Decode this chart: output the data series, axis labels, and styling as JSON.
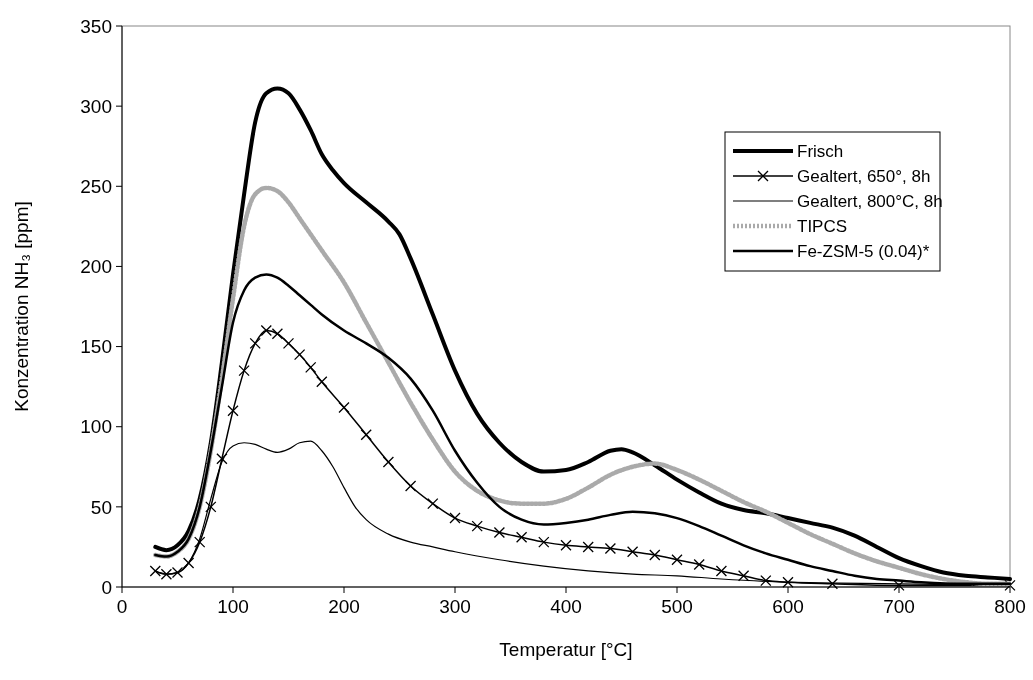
{
  "chart_data": {
    "type": "line",
    "xlabel": "Temperatur [°C]",
    "ylabel": "Konzentration NH₃ [ppm]",
    "xlim": [
      0,
      800
    ],
    "xticks": [
      0,
      100,
      200,
      300,
      400,
      500,
      600,
      700,
      800
    ],
    "ylim": [
      0,
      350
    ],
    "yticks": [
      0,
      50,
      100,
      150,
      200,
      250,
      300,
      350
    ],
    "grid": false,
    "legend": "top right",
    "series": [
      {
        "name": "Frisch",
        "color": "#000000",
        "marker": "none",
        "line_style": "solid",
        "x": [
          30,
          40,
          50,
          60,
          70,
          80,
          90,
          100,
          110,
          120,
          130,
          140,
          150,
          160,
          170,
          180,
          190,
          200,
          220,
          240,
          250,
          260,
          280,
          300,
          320,
          340,
          360,
          380,
          400,
          420,
          440,
          450,
          460,
          480,
          500,
          520,
          540,
          560,
          580,
          600,
          620,
          640,
          660,
          680,
          700,
          720,
          740,
          760,
          780,
          800
        ],
        "values": [
          25,
          23,
          26,
          35,
          55,
          90,
          140,
          195,
          245,
          290,
          308,
          311,
          308,
          298,
          285,
          270,
          260,
          252,
          240,
          228,
          220,
          205,
          170,
          135,
          108,
          90,
          78,
          72,
          73,
          78,
          85,
          86,
          84,
          76,
          67,
          59,
          52,
          48,
          46,
          43,
          40,
          37,
          32,
          25,
          18,
          13,
          9,
          7,
          6,
          5
        ]
      },
      {
        "name": "Gealtert, 650°, 8h",
        "color": "#000000",
        "marker": "cross",
        "line_style": "solid",
        "x": [
          30,
          40,
          50,
          60,
          70,
          80,
          90,
          100,
          110,
          120,
          130,
          140,
          150,
          160,
          170,
          180,
          200,
          220,
          240,
          260,
          280,
          300,
          320,
          340,
          360,
          380,
          400,
          420,
          440,
          460,
          480,
          500,
          520,
          540,
          560,
          580,
          600,
          640,
          700,
          800
        ],
        "values": [
          10,
          8,
          9,
          15,
          28,
          50,
          80,
          110,
          135,
          152,
          160,
          158,
          152,
          145,
          137,
          128,
          112,
          95,
          78,
          63,
          52,
          43,
          38,
          34,
          31,
          28,
          26,
          25,
          24,
          22,
          20,
          17,
          14,
          10,
          7,
          4,
          3,
          2,
          1,
          1
        ]
      },
      {
        "name": "Gealtert, 800°C, 8h",
        "color": "#000000",
        "marker": "none",
        "line_style": "solid",
        "x": [
          30,
          40,
          50,
          60,
          70,
          80,
          90,
          100,
          110,
          120,
          130,
          140,
          150,
          160,
          170,
          180,
          190,
          200,
          210,
          220,
          240,
          260,
          280,
          300,
          340,
          380,
          420,
          460,
          500,
          540,
          600,
          700,
          800
        ],
        "values": [
          10,
          8,
          9,
          15,
          30,
          55,
          78,
          88,
          90,
          89,
          86,
          84,
          86,
          90,
          91,
          85,
          75,
          62,
          50,
          42,
          33,
          28,
          25,
          22,
          17,
          13,
          10,
          8,
          7,
          5,
          3,
          2,
          1
        ]
      },
      {
        "name": "TIPCS",
        "color": "#aaaaaa",
        "marker": "none",
        "line_style": "dotted",
        "x": [
          30,
          40,
          50,
          60,
          70,
          80,
          90,
          100,
          110,
          120,
          130,
          140,
          150,
          160,
          170,
          180,
          200,
          220,
          240,
          260,
          280,
          300,
          320,
          340,
          360,
          380,
          400,
          420,
          440,
          460,
          480,
          500,
          520,
          540,
          560,
          580,
          600,
          620,
          640,
          660,
          680,
          700,
          720,
          740,
          760,
          780,
          800
        ],
        "values": [
          20,
          19,
          22,
          30,
          50,
          85,
          130,
          180,
          225,
          245,
          249,
          247,
          240,
          230,
          220,
          210,
          190,
          165,
          140,
          115,
          92,
          72,
          60,
          54,
          52,
          52,
          55,
          62,
          70,
          75,
          77,
          73,
          67,
          60,
          53,
          47,
          40,
          33,
          27,
          21,
          16,
          12,
          8,
          5,
          3,
          2,
          2
        ]
      },
      {
        "name": "Fe-ZSM-5 (0.04)*",
        "color": "#000000",
        "marker": "none",
        "line_style": "solid",
        "x": [
          30,
          40,
          50,
          60,
          70,
          80,
          90,
          100,
          110,
          120,
          130,
          140,
          150,
          160,
          170,
          180,
          200,
          220,
          240,
          260,
          280,
          300,
          320,
          340,
          360,
          380,
          400,
          420,
          440,
          460,
          480,
          500,
          520,
          540,
          560,
          580,
          600,
          620,
          640,
          660,
          680,
          700,
          720,
          760,
          800
        ],
        "values": [
          20,
          19,
          22,
          30,
          50,
          85,
          125,
          165,
          185,
          193,
          195,
          193,
          188,
          182,
          176,
          170,
          160,
          152,
          143,
          130,
          110,
          85,
          65,
          50,
          42,
          39,
          40,
          42,
          45,
          47,
          46,
          43,
          38,
          32,
          26,
          21,
          17,
          13,
          10,
          7,
          5,
          4,
          3,
          2,
          2
        ]
      }
    ]
  }
}
